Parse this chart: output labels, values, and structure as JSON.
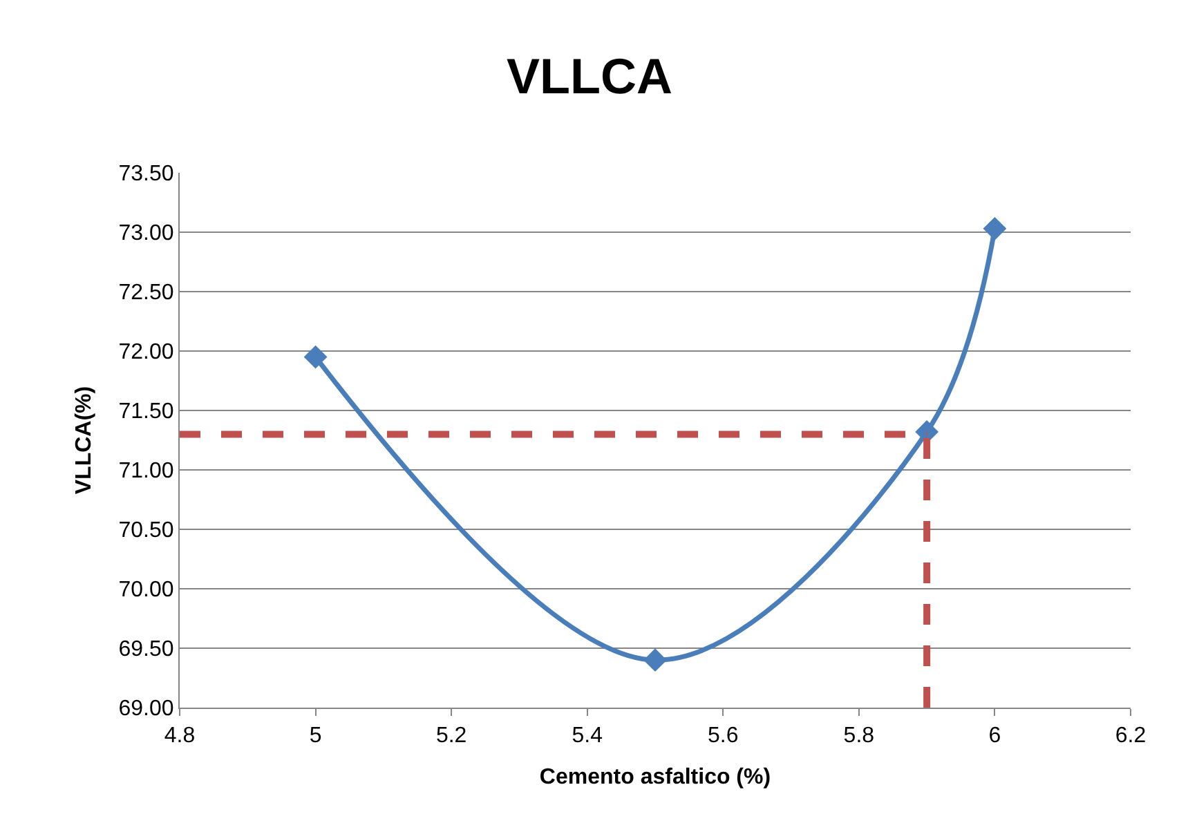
{
  "chart_data": {
    "type": "line",
    "title": "VLLCA",
    "xlabel": "Cemento asfaltico (%)",
    "ylabel": "VLLCA(%)",
    "x": [
      5,
      5.5,
      5.9,
      6
    ],
    "series": [
      {
        "color": "#4a7ebb",
        "values": [
          71.95,
          69.4,
          71.32,
          73.03
        ],
        "marker": "diamond",
        "line_style": "solid"
      }
    ],
    "ref_lines": [
      {
        "axis": "y",
        "value": 71.3,
        "color": "#c0504d",
        "line_style": "dashed"
      },
      {
        "axis": "x",
        "value": 5.9,
        "color": "#c0504d",
        "line_style": "dashed"
      }
    ],
    "xlim": [
      4.8,
      6.2
    ],
    "xticks": [
      {
        "value": 4.8,
        "label": "4.8"
      },
      {
        "value": 5,
        "label": "5"
      },
      {
        "value": 5.2,
        "label": "5.2"
      },
      {
        "value": 5.4,
        "label": "5.4"
      },
      {
        "value": 5.6,
        "label": "5.6"
      },
      {
        "value": 5.8,
        "label": "5.8"
      },
      {
        "value": 6,
        "label": "6"
      },
      {
        "value": 6.2,
        "label": "6.2"
      }
    ],
    "ylim": [
      69,
      73.5
    ],
    "yticks": [
      {
        "value": 69,
        "label": "69.00"
      },
      {
        "value": 69.5,
        "label": "69.50"
      },
      {
        "value": 70,
        "label": "70.00"
      },
      {
        "value": 70.5,
        "label": "70.50"
      },
      {
        "value": 71,
        "label": "71.00"
      },
      {
        "value": 71.5,
        "label": "71.50"
      },
      {
        "value": 72,
        "label": "72.00"
      },
      {
        "value": 72.5,
        "label": "72.50"
      },
      {
        "value": 73,
        "label": "73.00"
      },
      {
        "value": 73.5,
        "label": "73.50"
      }
    ],
    "grid": "y"
  }
}
